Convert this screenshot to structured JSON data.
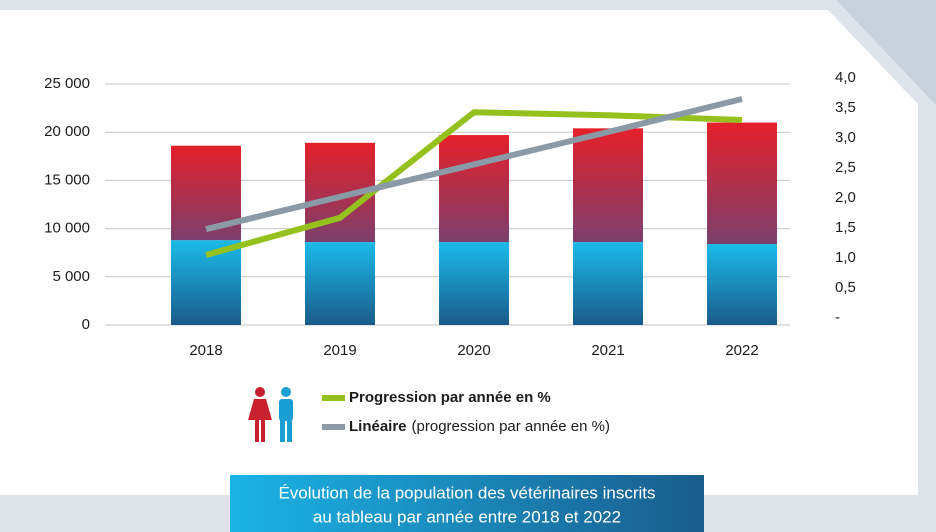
{
  "chart_data": {
    "type": "bar",
    "categories": [
      "2018",
      "2019",
      "2020",
      "2021",
      "2022"
    ],
    "series": [
      {
        "color": "#1bb6e6",
        "values": [
          8800,
          8600,
          8600,
          8600,
          8400
        ]
      },
      {
        "color": "#e3202a",
        "values": [
          9800,
          10300,
          11100,
          11800,
          12600
        ]
      },
      {
        "name": "Progression par année en %",
        "color": "#95c11f",
        "axis": "y2",
        "type": "line",
        "values": [
          1.05,
          1.67,
          3.43,
          3.38,
          3.3
        ]
      },
      {
        "name": "Linéaire",
        "color": "#8a9aa6",
        "axis": "y2",
        "type": "line",
        "values": [
          1.48,
          2.02,
          2.56,
          3.1,
          3.65
        ]
      }
    ],
    "legend_note": "(progression par année en %)",
    "ylim": [
      0,
      25000
    ],
    "yticks": [
      0,
      {
        "value": 5000,
        "label": "5 000"
      },
      {
        "value": 10000,
        "label": "10 000"
      },
      {
        "value": 15000,
        "label": "15 000"
      },
      {
        "value": 20000,
        "label": "20 000"
      },
      {
        "value": 25000,
        "label": "25 000"
      }
    ],
    "y2lim": [
      0,
      4
    ],
    "y2ticks": [
      {
        "value": 0,
        "label": "-"
      },
      {
        "value": 0.5,
        "label": "0,5"
      },
      {
        "value": 1,
        "label": "1,0"
      },
      {
        "value": 1.5,
        "label": "1,5"
      },
      {
        "value": 2,
        "label": "2,0"
      },
      {
        "value": 2.5,
        "label": "2,5"
      },
      {
        "value": 3,
        "label": "3,0"
      },
      {
        "value": 3.5,
        "label": "3,5"
      },
      {
        "value": 4,
        "label": "4,0"
      }
    ],
    "grid": true,
    "caption": [
      "Évolution de la population des vétérinaires inscrits",
      "au tableau par année entre 2018 et 2022"
    ]
  }
}
